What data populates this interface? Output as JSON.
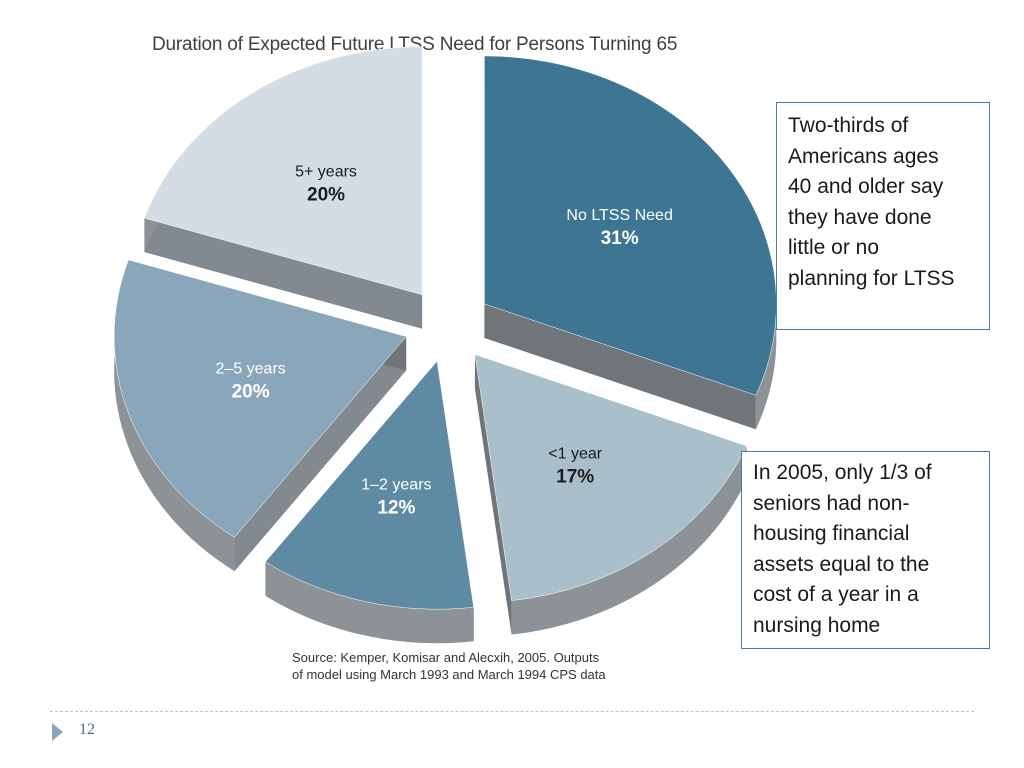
{
  "chart_data": {
    "type": "pie",
    "title": "Duration of Expected Future LTSS Need for Persons Turning 65",
    "start_angle_deg": 0,
    "slices": [
      {
        "name": "No LTSS Need",
        "value": 31,
        "label": "31%",
        "color": "#3d7593",
        "text_color": "#ffffff"
      },
      {
        "name": "<1 year",
        "value": 17,
        "label": "17%",
        "color": "#a9bfca",
        "text_color": "#1c1c1c"
      },
      {
        "name": "1–2 years",
        "value": 12,
        "label": "12%",
        "color": "#5e8aa3",
        "text_color": "#ffffff"
      },
      {
        "name": "2–5 years",
        "value": 20,
        "label": "20%",
        "color": "#8aa6ba",
        "text_color": "#ffffff"
      },
      {
        "name": "5+ years",
        "value": 20,
        "label": "20%",
        "color": "#d3dde3",
        "text_color": "#1c1c1c"
      }
    ],
    "source_lines": [
      "Source: Kemper, Komisar and Alecxih, 2005. Outputs",
      "of model using March 1993 and March 1994 CPS data"
    ]
  },
  "notes": {
    "note1_lines": [
      "Two-thirds of",
      "Americans ages",
      "40 and older say",
      "they have done",
      "little or no",
      "planning for LTSS"
    ],
    "note2_lines": [
      "In 2005, only 1/3 of",
      "seniors had non-",
      "housing financial",
      "assets equal to the",
      "cost of a year in a",
      "nursing home"
    ]
  },
  "footer": {
    "page_number": "12"
  },
  "colors": {
    "side_shade": "#8c9296",
    "note_border": "#4a7aa8",
    "accent": "#4a6fa0"
  }
}
